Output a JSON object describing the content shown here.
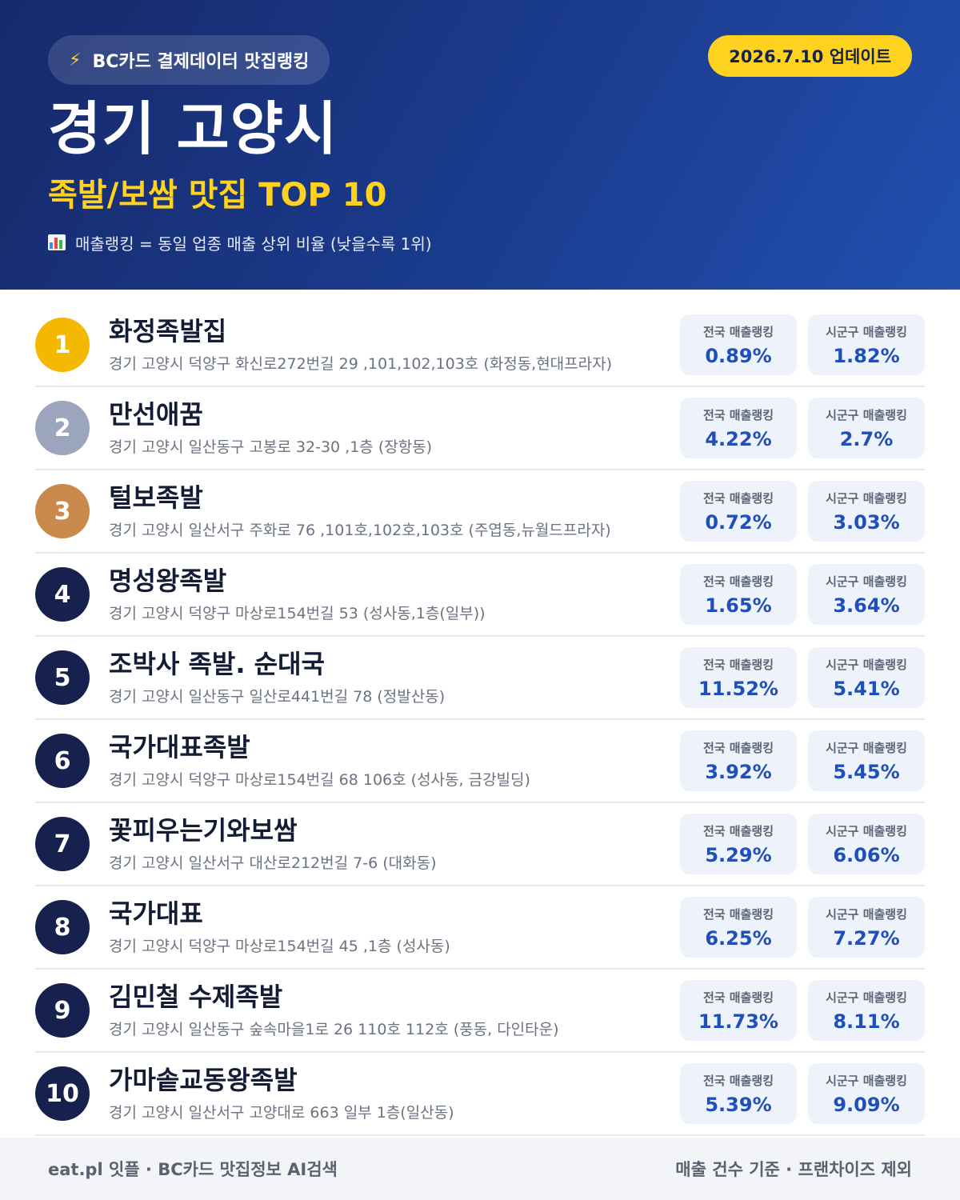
{
  "header": {
    "badge_icon": "lightning-icon",
    "badge_label": "BC카드 결제데이터 맛집랭킹",
    "update_label": "2026.7.10 업데이트",
    "city": "경기 고양시",
    "subtitle": "족발/보쌈 맛집 TOP 10",
    "note_icon": "bar-chart-icon",
    "note": "매출랭킹 = 동일 업종 매출 상위 비율 (낮을수록 1위)"
  },
  "colors": {
    "header_start": "#16296a",
    "header_end": "#2150b0",
    "accent_yellow": "#ffd21f",
    "gold": "#f5b800",
    "silver": "#9ba6bd",
    "bronze": "#c98a4b",
    "navy": "#16224d",
    "value_blue": "#1f4fb8"
  },
  "stat_labels": {
    "national": "전국 매출랭킹",
    "district": "시군구 매출랭킹"
  },
  "items": [
    {
      "rank": "1",
      "name": "화정족발집",
      "address": "경기 고양시 덕양구 화신로272번길 29 ,101,102,103호 (화정동,현대프라자)",
      "national": "0.89%",
      "district": "1.82%",
      "medal": "gold"
    },
    {
      "rank": "2",
      "name": "만선애꿈",
      "address": "경기 고양시 일산동구 고봉로 32-30 ,1층 (장항동)",
      "national": "4.22%",
      "district": "2.7%",
      "medal": "silver"
    },
    {
      "rank": "3",
      "name": "털보족발",
      "address": "경기 고양시 일산서구 주화로 76 ,101호,102호,103호 (주엽동,뉴월드프라자)",
      "national": "0.72%",
      "district": "3.03%",
      "medal": "bronze"
    },
    {
      "rank": "4",
      "name": "명성왕족발",
      "address": "경기 고양시 덕양구 마상로154번길 53 (성사동,1층(일부))",
      "national": "1.65%",
      "district": "3.64%",
      "medal": "navy"
    },
    {
      "rank": "5",
      "name": "조박사 족발. 순대국",
      "address": "경기 고양시 일산동구 일산로441번길 78 (정발산동)",
      "national": "11.52%",
      "district": "5.41%",
      "medal": "navy"
    },
    {
      "rank": "6",
      "name": "국가대표족발",
      "address": "경기 고양시 덕양구 마상로154번길 68 106호 (성사동, 금강빌딩)",
      "national": "3.92%",
      "district": "5.45%",
      "medal": "navy"
    },
    {
      "rank": "7",
      "name": "꽃피우는기와보쌈",
      "address": "경기 고양시 일산서구 대산로212번길 7-6 (대화동)",
      "national": "5.29%",
      "district": "6.06%",
      "medal": "navy"
    },
    {
      "rank": "8",
      "name": "국가대표",
      "address": "경기 고양시 덕양구 마상로154번길 45 ,1층 (성사동)",
      "national": "6.25%",
      "district": "7.27%",
      "medal": "navy"
    },
    {
      "rank": "9",
      "name": "김민철 수제족발",
      "address": "경기 고양시 일산동구 숲속마을1로 26 110호 112호 (풍동, 다인타운)",
      "national": "11.73%",
      "district": "8.11%",
      "medal": "navy"
    },
    {
      "rank": "10",
      "name": "가마솥교동왕족발",
      "address": "경기 고양시 일산서구 고양대로 663 일부 1층(일산동)",
      "national": "5.39%",
      "district": "9.09%",
      "medal": "navy"
    }
  ],
  "footer": {
    "left": "eat.pl 잇플 · BC카드 맛집정보 AI검색",
    "right": "매출 건수 기준 · 프랜차이즈 제외"
  }
}
